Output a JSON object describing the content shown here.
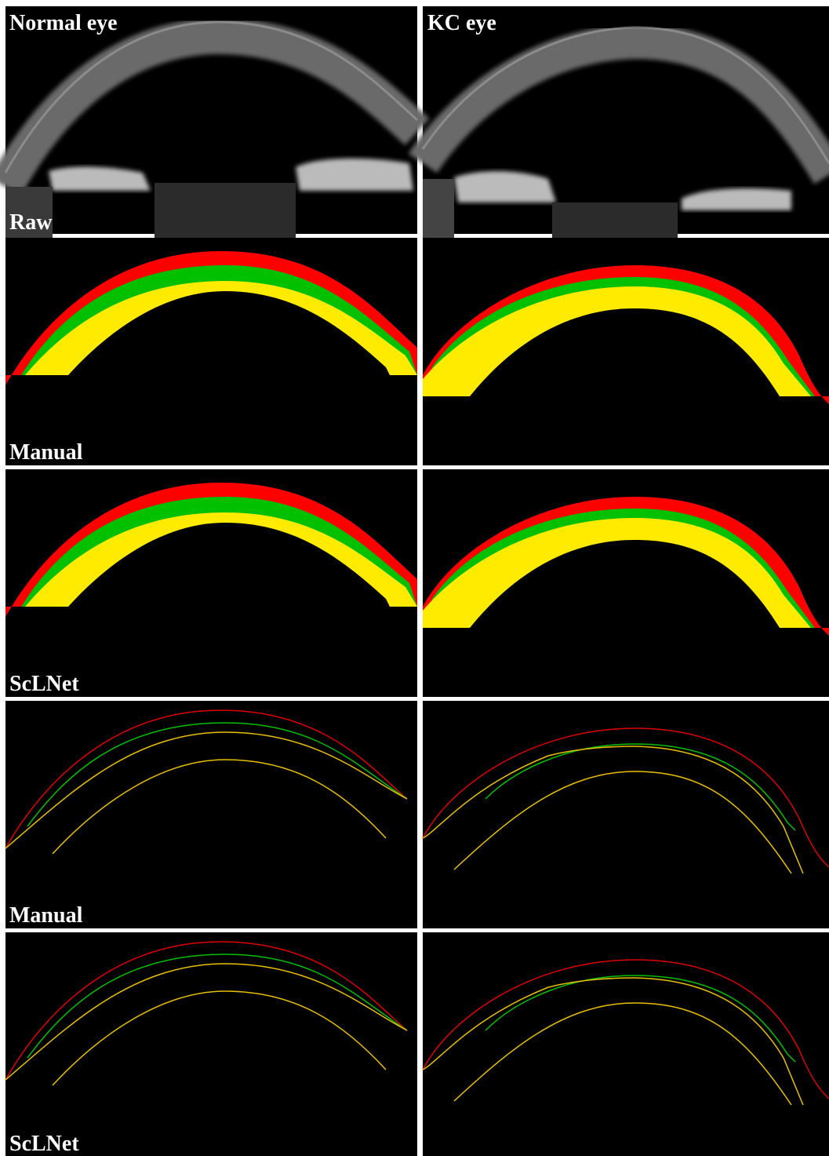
{
  "columns": [
    "Normal eye",
    "KC eye"
  ],
  "rows": [
    "Raw",
    "Manual",
    "ScLNet",
    "Manual",
    "ScLNet"
  ]
}
